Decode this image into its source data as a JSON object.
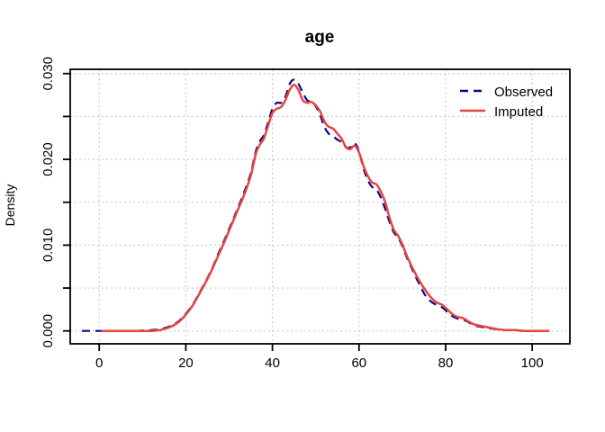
{
  "chart_data": {
    "type": "line",
    "title": "age",
    "xlabel": "",
    "ylabel": "Density",
    "x_ticks": [
      0,
      20,
      40,
      60,
      80,
      100
    ],
    "x_tick_labels": [
      "0",
      "20",
      "40",
      "60",
      "80",
      "100"
    ],
    "y_ticks": [
      0.0,
      0.005,
      0.01,
      0.015,
      0.02,
      0.025,
      0.03
    ],
    "y_tick_labels": [
      "0.000",
      "",
      "0.010",
      "",
      "0.020",
      "",
      "0.030"
    ],
    "xlim": [
      -6.7,
      108.7
    ],
    "ylim": [
      -0.0015,
      0.0305
    ],
    "grid": "dashed",
    "grid_color": "#C9C9C9",
    "background_color": "#FFFFFF",
    "axis_color": "#000000",
    "legend_position": "top-right",
    "series": [
      {
        "name": "Observed",
        "color": "#08088A",
        "line_style": "dashed",
        "points": [
          [
            -4,
            0
          ],
          [
            0,
            0
          ],
          [
            4,
            0
          ],
          [
            8,
            0
          ],
          [
            12,
            0.0001
          ],
          [
            14,
            0.0002
          ],
          [
            15.5,
            0.0004
          ],
          [
            17,
            0.0007
          ],
          [
            18.5,
            0.0012
          ],
          [
            20,
            0.002
          ],
          [
            21.5,
            0.003
          ],
          [
            23,
            0.0043
          ],
          [
            24.5,
            0.0057
          ],
          [
            26,
            0.0072
          ],
          [
            27.5,
            0.009
          ],
          [
            29,
            0.0107
          ],
          [
            30.5,
            0.0125
          ],
          [
            32,
            0.0143
          ],
          [
            33.5,
            0.0162
          ],
          [
            35,
            0.0184
          ],
          [
            36.2,
            0.021
          ],
          [
            37.2,
            0.0222
          ],
          [
            38,
            0.0228
          ],
          [
            39,
            0.0243
          ],
          [
            40,
            0.0259
          ],
          [
            41,
            0.0266
          ],
          [
            42,
            0.0266
          ],
          [
            43,
            0.0273
          ],
          [
            44,
            0.0288
          ],
          [
            45,
            0.0293
          ],
          [
            46,
            0.0288
          ],
          [
            46.8,
            0.028
          ],
          [
            48,
            0.0269
          ],
          [
            49,
            0.0268
          ],
          [
            50,
            0.0262
          ],
          [
            51,
            0.0252
          ],
          [
            52,
            0.0238
          ],
          [
            53,
            0.023
          ],
          [
            54,
            0.0227
          ],
          [
            55,
            0.0223
          ],
          [
            56,
            0.022
          ],
          [
            57,
            0.0214
          ],
          [
            58,
            0.0214
          ],
          [
            59,
            0.0219
          ],
          [
            60,
            0.0209
          ],
          [
            61,
            0.019
          ],
          [
            62,
            0.0176
          ],
          [
            63,
            0.0168
          ],
          [
            64,
            0.0165
          ],
          [
            65,
            0.0156
          ],
          [
            66,
            0.0143
          ],
          [
            67,
            0.0128
          ],
          [
            68,
            0.0115
          ],
          [
            69,
            0.0109
          ],
          [
            70,
            0.0099
          ],
          [
            71,
            0.0086
          ],
          [
            72,
            0.0075
          ],
          [
            73,
            0.0064
          ],
          [
            74,
            0.0054
          ],
          [
            75,
            0.0044
          ],
          [
            76,
            0.0037
          ],
          [
            77,
            0.0033
          ],
          [
            78,
            0.003
          ],
          [
            79,
            0.0028
          ],
          [
            80,
            0.0024
          ],
          [
            81,
            0.0019
          ],
          [
            82,
            0.0016
          ],
          [
            83,
            0.0014
          ],
          [
            84,
            0.0013
          ],
          [
            85,
            0.0011
          ],
          [
            86,
            0.0008
          ],
          [
            87,
            0.0006
          ],
          [
            88,
            0.0005
          ],
          [
            89,
            0.0004
          ],
          [
            90,
            0.0003
          ],
          [
            92,
            0.0002
          ],
          [
            94,
            0.0001
          ],
          [
            96,
            0.0001
          ],
          [
            98,
            0
          ],
          [
            100,
            0
          ]
        ]
      },
      {
        "name": "Imputed",
        "color": "#E64540",
        "line_style": "solid",
        "points": [
          [
            0.5,
            0
          ],
          [
            4,
            0
          ],
          [
            8,
            0
          ],
          [
            12,
            0
          ],
          [
            14,
            0.0001
          ],
          [
            15.5,
            0.0003
          ],
          [
            17,
            0.0006
          ],
          [
            18.5,
            0.0011
          ],
          [
            20,
            0.0019
          ],
          [
            21.5,
            0.0029
          ],
          [
            23,
            0.0042
          ],
          [
            24.5,
            0.0056
          ],
          [
            26,
            0.0071
          ],
          [
            27.5,
            0.0088
          ],
          [
            29,
            0.0105
          ],
          [
            30.5,
            0.0123
          ],
          [
            32,
            0.0141
          ],
          [
            33.5,
            0.0159
          ],
          [
            35,
            0.0181
          ],
          [
            36.2,
            0.0207
          ],
          [
            37.2,
            0.0218
          ],
          [
            38,
            0.0224
          ],
          [
            39,
            0.0239
          ],
          [
            40,
            0.0254
          ],
          [
            41,
            0.0259
          ],
          [
            42,
            0.0261
          ],
          [
            43,
            0.0269
          ],
          [
            44,
            0.0281
          ],
          [
            45,
            0.0287
          ],
          [
            46,
            0.0281
          ],
          [
            47,
            0.0269
          ],
          [
            48,
            0.0266
          ],
          [
            49,
            0.0267
          ],
          [
            50,
            0.0263
          ],
          [
            51,
            0.0256
          ],
          [
            52,
            0.0244
          ],
          [
            53,
            0.0238
          ],
          [
            54,
            0.0236
          ],
          [
            55,
            0.023
          ],
          [
            56,
            0.0224
          ],
          [
            57,
            0.0214
          ],
          [
            58,
            0.0212
          ],
          [
            59,
            0.0216
          ],
          [
            60,
            0.0208
          ],
          [
            61,
            0.0193
          ],
          [
            62,
            0.0181
          ],
          [
            63,
            0.0173
          ],
          [
            64,
            0.0171
          ],
          [
            65,
            0.0163
          ],
          [
            66,
            0.0151
          ],
          [
            67,
            0.0133
          ],
          [
            68,
            0.0118
          ],
          [
            69,
            0.0111
          ],
          [
            70,
            0.0101
          ],
          [
            71,
            0.0088
          ],
          [
            72,
            0.0077
          ],
          [
            73,
            0.0067
          ],
          [
            74,
            0.0058
          ],
          [
            75,
            0.005
          ],
          [
            76,
            0.0043
          ],
          [
            77,
            0.0037
          ],
          [
            78,
            0.0033
          ],
          [
            79,
            0.0031
          ],
          [
            80,
            0.0027
          ],
          [
            81,
            0.0022
          ],
          [
            82,
            0.0018
          ],
          [
            83,
            0.0016
          ],
          [
            84,
            0.0015
          ],
          [
            85,
            0.0012
          ],
          [
            86,
            0.0009
          ],
          [
            87,
            0.0007
          ],
          [
            88,
            0.0006
          ],
          [
            89,
            0.0005
          ],
          [
            90,
            0.0004
          ],
          [
            92,
            0.0002
          ],
          [
            94,
            0.0001
          ],
          [
            96,
            0.0001
          ],
          [
            98,
            0
          ],
          [
            101,
            0
          ],
          [
            104,
            0
          ]
        ]
      }
    ]
  }
}
